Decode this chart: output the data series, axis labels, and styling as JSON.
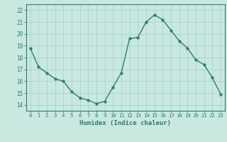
{
  "x": [
    0,
    1,
    2,
    3,
    4,
    5,
    6,
    7,
    8,
    9,
    10,
    11,
    12,
    13,
    14,
    15,
    16,
    17,
    18,
    19,
    20,
    21,
    22,
    23
  ],
  "y": [
    18.8,
    17.2,
    16.7,
    16.2,
    16.0,
    15.1,
    14.6,
    14.4,
    14.1,
    14.3,
    15.5,
    16.7,
    19.6,
    19.7,
    21.0,
    21.6,
    21.2,
    20.3,
    19.4,
    18.8,
    17.8,
    17.4,
    16.3,
    14.9
  ],
  "line_color": "#2e7d72",
  "marker_color": "#2e7d72",
  "bg_color": "#c8e8e0",
  "grid_color": "#aad4cc",
  "xlabel": "Humidex (Indice chaleur)",
  "ylim": [
    13.5,
    22.5
  ],
  "xlim": [
    -0.5,
    23.5
  ],
  "yticks": [
    14,
    15,
    16,
    17,
    18,
    19,
    20,
    21,
    22
  ],
  "xticks": [
    0,
    1,
    2,
    3,
    4,
    5,
    6,
    7,
    8,
    9,
    10,
    11,
    12,
    13,
    14,
    15,
    16,
    17,
    18,
    19,
    20,
    21,
    22,
    23
  ],
  "label_color": "#2e7d72",
  "tick_color": "#2e7d72",
  "spine_color": "#2e7d72"
}
